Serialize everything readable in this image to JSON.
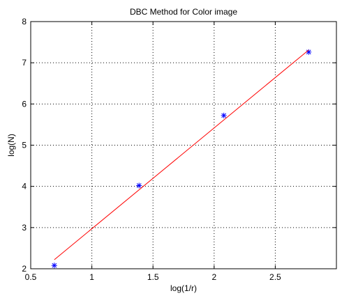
{
  "chart_data": {
    "type": "scatter",
    "title": "DBC Method for Color image",
    "xlabel": "log(1/r)",
    "ylabel": "log(N)",
    "xlim": [
      0.5,
      3.0
    ],
    "ylim": [
      2,
      8
    ],
    "xticks": [
      0.5,
      1,
      1.5,
      2,
      2.5
    ],
    "xtick_labels": [
      "0.5",
      "1",
      "1.5",
      "2",
      "2.5"
    ],
    "yticks": [
      2,
      3,
      4,
      5,
      6,
      7,
      8
    ],
    "ytick_labels": [
      "2",
      "3",
      "4",
      "5",
      "6",
      "7",
      "8"
    ],
    "grid": true,
    "grid_style": "dotted",
    "legend": "none",
    "series": [
      {
        "type": "scatter",
        "marker": "asterisk",
        "color": "#0000ff",
        "x": [
          0.693,
          1.386,
          2.079,
          2.773
        ],
        "y": [
          2.08,
          4.02,
          5.72,
          7.26
        ]
      },
      {
        "type": "line",
        "color": "#ff0000",
        "x": [
          0.693,
          2.773
        ],
        "y": [
          2.22,
          7.31
        ]
      }
    ]
  }
}
